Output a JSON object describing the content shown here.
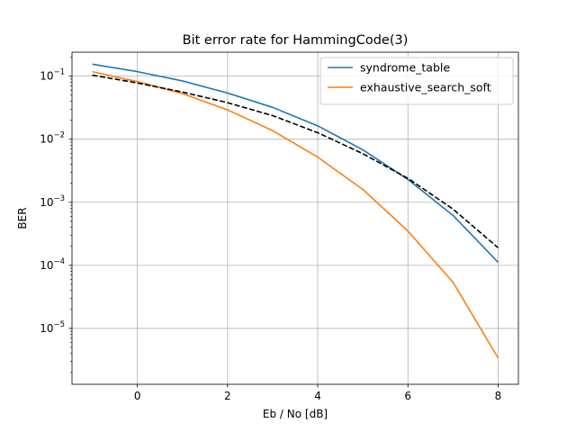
{
  "chart_data": {
    "type": "line",
    "title": "Bit error rate for HammingCode(3)",
    "xlabel": "Eb / No [dB]",
    "ylabel": "BER",
    "yscale": "log",
    "xlim": [
      -1.45,
      8.45
    ],
    "ylim": [
      1.3e-06,
      0.24
    ],
    "xticks": [
      0,
      2,
      4,
      6,
      8
    ],
    "xtick_labels": [
      "0",
      "2",
      "4",
      "6",
      "8"
    ],
    "yticks": [
      1e-05,
      0.0001,
      0.001,
      0.01,
      0.1
    ],
    "ytick_labels": [
      {
        "base": "10",
        "exp": "−5"
      },
      {
        "base": "10",
        "exp": "−4"
      },
      {
        "base": "10",
        "exp": "−3"
      },
      {
        "base": "10",
        "exp": "−2"
      },
      {
        "base": "10",
        "exp": "−1"
      }
    ],
    "grid": true,
    "legend_position": "top-right",
    "x": [
      -1,
      0,
      1,
      2,
      3,
      4,
      5,
      6,
      7,
      8
    ],
    "series": [
      {
        "name": "syndrome_table",
        "color": "#1f77b4",
        "linestyle": "solid",
        "values": [
          0.155,
          0.118,
          0.084,
          0.054,
          0.032,
          0.0163,
          0.0068,
          0.0023,
          0.00062,
          0.000112
        ]
      },
      {
        "name": "exhaustive_search_soft",
        "color": "#ff7f0e",
        "linestyle": "solid",
        "values": [
          0.118,
          0.082,
          0.053,
          0.0292,
          0.0137,
          0.0052,
          0.0016,
          0.00035,
          5.4e-05,
          3.4e-06
        ]
      },
      {
        "name": "",
        "color": "#000000",
        "linestyle": "dashed",
        "in_legend": false,
        "values": [
          0.104,
          0.078,
          0.056,
          0.038,
          0.0237,
          0.0127,
          0.0059,
          0.0024,
          0.00078,
          0.00019
        ]
      }
    ]
  }
}
